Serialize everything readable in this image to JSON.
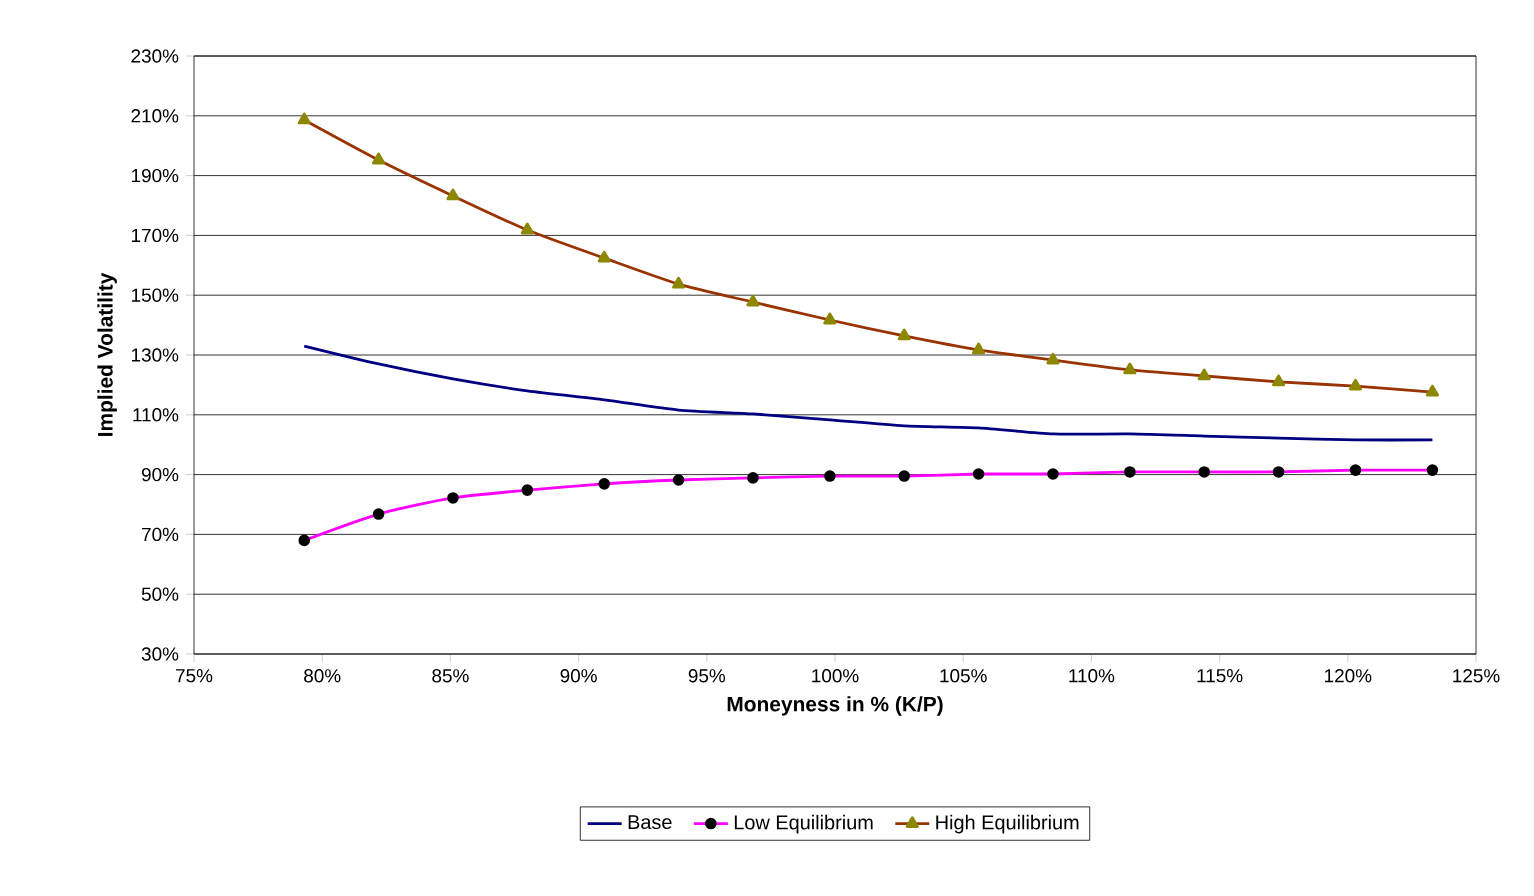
{
  "chart_data": {
    "type": "line",
    "xlabel": "Moneyness in % (K/P)",
    "ylabel": "Implied Volatility",
    "x": [
      79.3,
      82.2,
      85.1,
      88.0,
      91.0,
      93.9,
      96.8,
      99.8,
      102.7,
      105.6,
      108.5,
      111.5,
      114.4,
      117.3,
      120.3,
      123.3
    ],
    "series": [
      {
        "name": "Base",
        "color": "#000080",
        "marker": "none",
        "values": [
          133,
          127,
          122,
          118,
          115,
          111.6,
          110.3,
          108.3,
          106.3,
          105.6,
          103.6,
          103.6,
          102.9,
          102.2,
          101.6,
          101.6
        ]
      },
      {
        "name": "Low Equilibrium",
        "color": "#ff00ff",
        "marker": "circle",
        "values": [
          68,
          76.8,
          82.2,
          84.8,
          86.9,
          88.2,
          88.9,
          89.5,
          89.5,
          90.2,
          90.2,
          90.9,
          90.9,
          90.9,
          91.5,
          91.5
        ]
      },
      {
        "name": "High Equilibrium",
        "color": "#993300",
        "marker": "triangle",
        "values": [
          208.6,
          195.2,
          183.2,
          171.8,
          162.4,
          153.7,
          147.7,
          141.7,
          136.4,
          131.7,
          128.3,
          125,
          123,
          121,
          119.6,
          117.6
        ]
      }
    ],
    "xlim": [
      75,
      125
    ],
    "xticks": [
      {
        "value": 75,
        "label": "75%"
      },
      {
        "value": 80,
        "label": "80%"
      },
      {
        "value": 85,
        "label": "85%"
      },
      {
        "value": 90,
        "label": "90%"
      },
      {
        "value": 95,
        "label": "95%"
      },
      {
        "value": 100,
        "label": "100%"
      },
      {
        "value": 105,
        "label": "105%"
      },
      {
        "value": 110,
        "label": "110%"
      },
      {
        "value": 115,
        "label": "115%"
      },
      {
        "value": 120,
        "label": "120%"
      },
      {
        "value": 125,
        "label": "125%"
      }
    ],
    "ylim": [
      30,
      230
    ],
    "yticks": [
      {
        "value": 30,
        "label": "30%"
      },
      {
        "value": 50,
        "label": "50%"
      },
      {
        "value": 70,
        "label": "70%"
      },
      {
        "value": 90,
        "label": "90%"
      },
      {
        "value": 110,
        "label": "110%"
      },
      {
        "value": 130,
        "label": "130%"
      },
      {
        "value": 150,
        "label": "150%"
      },
      {
        "value": 170,
        "label": "170%"
      },
      {
        "value": 190,
        "label": "190%"
      },
      {
        "value": 210,
        "label": "210%"
      },
      {
        "value": 230,
        "label": "230%"
      }
    ],
    "grid": "y",
    "legend": "bottom",
    "line_style": "solid"
  }
}
